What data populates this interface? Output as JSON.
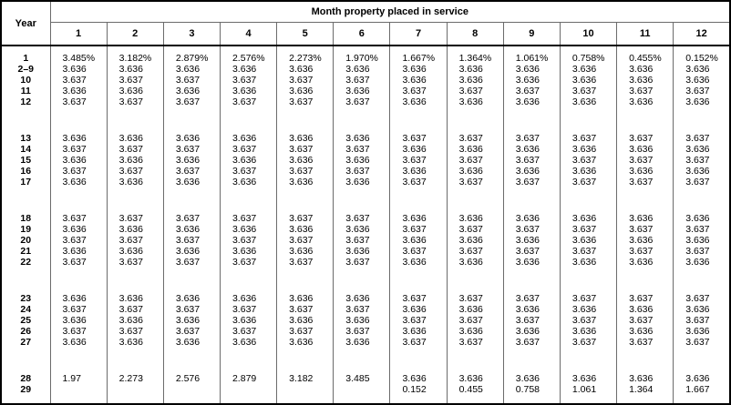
{
  "colors": {
    "background": "#ffffff",
    "text": "#000000",
    "outer_border": "#000000",
    "grid_line": "#6b6b6b"
  },
  "table": {
    "corner_header": "Year",
    "group_header": "Month property placed in service",
    "month_headers": [
      "1",
      "2",
      "3",
      "4",
      "5",
      "6",
      "7",
      "8",
      "9",
      "10",
      "11",
      "12"
    ],
    "blocks": [
      {
        "rows": [
          {
            "year": "1",
            "values": [
              "3.485%",
              "3.182%",
              "2.879%",
              "2.576%",
              "2.273%",
              "1.970%",
              "1.667%",
              "1.364%",
              "1.061%",
              "0.758%",
              "0.455%",
              "0.152%"
            ]
          },
          {
            "year": "2–9",
            "values": [
              "3.636",
              "3.636",
              "3.636",
              "3.636",
              "3.636",
              "3.636",
              "3.636",
              "3.636",
              "3.636",
              "3.636",
              "3.636",
              "3.636"
            ]
          },
          {
            "year": "10",
            "values": [
              "3.637",
              "3.637",
              "3.637",
              "3.637",
              "3.637",
              "3.637",
              "3.636",
              "3.636",
              "3.636",
              "3.636",
              "3.636",
              "3.636"
            ]
          },
          {
            "year": "11",
            "values": [
              "3.636",
              "3.636",
              "3.636",
              "3.636",
              "3.636",
              "3.636",
              "3.637",
              "3.637",
              "3.637",
              "3.637",
              "3.637",
              "3.637"
            ]
          },
          {
            "year": "12",
            "values": [
              "3.637",
              "3.637",
              "3.637",
              "3.637",
              "3.637",
              "3.637",
              "3.636",
              "3.636",
              "3.636",
              "3.636",
              "3.636",
              "3.636"
            ]
          }
        ]
      },
      {
        "rows": [
          {
            "year": "13",
            "values": [
              "3.636",
              "3.636",
              "3.636",
              "3.636",
              "3.636",
              "3.636",
              "3.637",
              "3.637",
              "3.637",
              "3.637",
              "3.637",
              "3.637"
            ]
          },
          {
            "year": "14",
            "values": [
              "3.637",
              "3.637",
              "3.637",
              "3.637",
              "3.637",
              "3.637",
              "3.636",
              "3.636",
              "3.636",
              "3.636",
              "3.636",
              "3.636"
            ]
          },
          {
            "year": "15",
            "values": [
              "3.636",
              "3.636",
              "3.636",
              "3.636",
              "3.636",
              "3.636",
              "3.637",
              "3.637",
              "3.637",
              "3.637",
              "3.637",
              "3.637"
            ]
          },
          {
            "year": "16",
            "values": [
              "3.637",
              "3.637",
              "3.637",
              "3.637",
              "3.637",
              "3.637",
              "3.636",
              "3.636",
              "3.636",
              "3.636",
              "3.636",
              "3.636"
            ]
          },
          {
            "year": "17",
            "values": [
              "3.636",
              "3.636",
              "3.636",
              "3.636",
              "3.636",
              "3.636",
              "3.637",
              "3.637",
              "3.637",
              "3.637",
              "3.637",
              "3.637"
            ]
          }
        ]
      },
      {
        "rows": [
          {
            "year": "18",
            "values": [
              "3.637",
              "3.637",
              "3.637",
              "3.637",
              "3.637",
              "3.637",
              "3.636",
              "3.636",
              "3.636",
              "3.636",
              "3.636",
              "3.636"
            ]
          },
          {
            "year": "19",
            "values": [
              "3.636",
              "3.636",
              "3.636",
              "3.636",
              "3.636",
              "3.636",
              "3.637",
              "3.637",
              "3.637",
              "3.637",
              "3.637",
              "3.637"
            ]
          },
          {
            "year": "20",
            "values": [
              "3.637",
              "3.637",
              "3.637",
              "3.637",
              "3.637",
              "3.637",
              "3.636",
              "3.636",
              "3.636",
              "3.636",
              "3.636",
              "3.636"
            ]
          },
          {
            "year": "21",
            "values": [
              "3.636",
              "3.636",
              "3.636",
              "3.636",
              "3.636",
              "3.636",
              "3.637",
              "3.637",
              "3.637",
              "3.637",
              "3.637",
              "3.637"
            ]
          },
          {
            "year": "22",
            "values": [
              "3.637",
              "3.637",
              "3.637",
              "3.637",
              "3.637",
              "3.637",
              "3.636",
              "3.636",
              "3.636",
              "3.636",
              "3.636",
              "3.636"
            ]
          }
        ]
      },
      {
        "rows": [
          {
            "year": "23",
            "values": [
              "3.636",
              "3.636",
              "3.636",
              "3.636",
              "3.636",
              "3.636",
              "3.637",
              "3.637",
              "3.637",
              "3.637",
              "3.637",
              "3.637"
            ]
          },
          {
            "year": "24",
            "values": [
              "3.637",
              "3.637",
              "3.637",
              "3.637",
              "3.637",
              "3.637",
              "3.636",
              "3.636",
              "3.636",
              "3.636",
              "3.636",
              "3.636"
            ]
          },
          {
            "year": "25",
            "values": [
              "3.636",
              "3.636",
              "3.636",
              "3.636",
              "3.636",
              "3.636",
              "3.637",
              "3.637",
              "3.637",
              "3.637",
              "3.637",
              "3.637"
            ]
          },
          {
            "year": "26",
            "values": [
              "3.637",
              "3.637",
              "3.637",
              "3.637",
              "3.637",
              "3.637",
              "3.636",
              "3.636",
              "3.636",
              "3.636",
              "3.636",
              "3.636"
            ]
          },
          {
            "year": "27",
            "values": [
              "3.636",
              "3.636",
              "3.636",
              "3.636",
              "3.636",
              "3.636",
              "3.637",
              "3.637",
              "3.637",
              "3.637",
              "3.637",
              "3.637"
            ]
          }
        ]
      },
      {
        "rows": [
          {
            "year": "28",
            "values": [
              "1.97",
              "2.273",
              "2.576",
              "2.879",
              "3.182",
              "3.485",
              "3.636",
              "3.636",
              "3.636",
              "3.636",
              "3.636",
              "3.636"
            ]
          },
          {
            "year": "29",
            "values": [
              "",
              "",
              "",
              "",
              "",
              "",
              "0.152",
              "0.455",
              "0.758",
              "1.061",
              "1.364",
              "1.667"
            ]
          }
        ]
      }
    ]
  }
}
